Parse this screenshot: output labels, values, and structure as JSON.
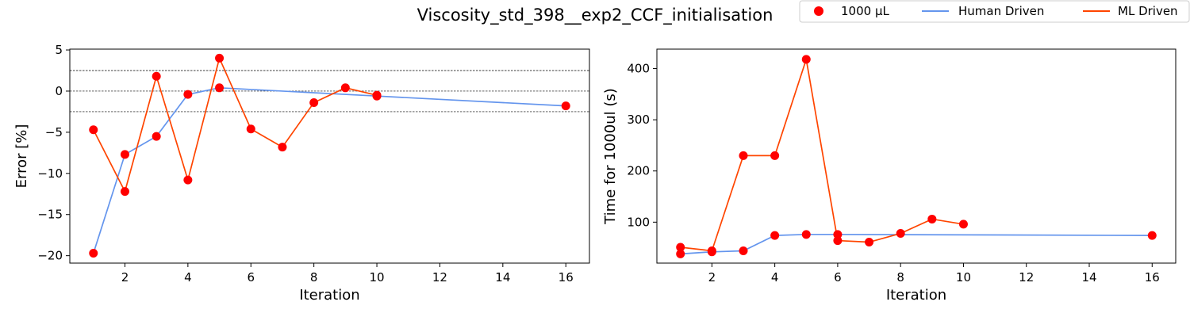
{
  "figure": {
    "title": "Viscosity_std_398__exp2_CCF_initialisation"
  },
  "legend": {
    "position": "top-right",
    "entries": [
      {
        "label": "1000 µL",
        "kind": "marker",
        "color": "#ff0000"
      },
      {
        "label": "Human Driven",
        "kind": "line",
        "color": "#6495ed"
      },
      {
        "label": "ML Driven",
        "kind": "line",
        "color": "#ff4500"
      }
    ]
  },
  "chart_data": [
    {
      "type": "line",
      "xlabel": "Iteration",
      "ylabel": "Error [%]",
      "xlim": [
        0.25,
        16.75
      ],
      "ylim": [
        -20.9,
        5.1
      ],
      "xticks": [
        2,
        4,
        6,
        8,
        10,
        12,
        14,
        16
      ],
      "yticks": [
        -20,
        -15,
        -10,
        -5,
        0,
        5
      ],
      "reference_lines": [
        2.5,
        0,
        -2.5
      ],
      "grid": false,
      "series": [
        {
          "name": "Human Driven",
          "color": "#6495ed",
          "x": [
            1,
            2,
            3,
            4,
            5,
            10,
            16
          ],
          "y": [
            -19.7,
            -7.7,
            -5.5,
            -0.4,
            0.4,
            -0.6,
            -1.8
          ]
        },
        {
          "name": "ML Driven",
          "color": "#ff4500",
          "x": [
            1,
            2,
            3,
            4,
            5,
            6,
            7,
            8,
            9,
            10
          ],
          "y": [
            -4.7,
            -12.2,
            1.8,
            -10.8,
            4.0,
            -4.6,
            -6.8,
            -1.4,
            0.4,
            -0.5
          ]
        }
      ],
      "markers": {
        "name": "1000 µL",
        "color": "#ff0000",
        "points": [
          [
            1,
            -19.7
          ],
          [
            2,
            -7.7
          ],
          [
            3,
            -5.5
          ],
          [
            4,
            -0.4
          ],
          [
            5,
            0.4
          ],
          [
            10,
            -0.6
          ],
          [
            16,
            -1.8
          ],
          [
            1,
            -4.7
          ],
          [
            2,
            -12.2
          ],
          [
            3,
            1.8
          ],
          [
            4,
            -10.8
          ],
          [
            5,
            4.0
          ],
          [
            6,
            -4.6
          ],
          [
            7,
            -6.8
          ],
          [
            8,
            -1.4
          ],
          [
            9,
            0.4
          ],
          [
            10,
            -0.5
          ]
        ]
      }
    },
    {
      "type": "line",
      "xlabel": "Iteration",
      "ylabel": "Time for 1000ul (s)",
      "xlim": [
        0.25,
        16.75
      ],
      "ylim": [
        20,
        438
      ],
      "xticks": [
        2,
        4,
        6,
        8,
        10,
        12,
        14,
        16
      ],
      "yticks": [
        100,
        200,
        300,
        400
      ],
      "reference_lines": [],
      "grid": false,
      "series": [
        {
          "name": "Human Driven",
          "color": "#6495ed",
          "x": [
            1,
            2,
            3,
            4,
            5,
            6,
            16
          ],
          "y": [
            38,
            42,
            44,
            74,
            76,
            76,
            74
          ]
        },
        {
          "name": "ML Driven",
          "color": "#ff4500",
          "x": [
            1,
            2,
            3,
            4,
            5,
            6,
            7,
            8,
            9,
            10
          ],
          "y": [
            51,
            44,
            230,
            230,
            418,
            64,
            61,
            78,
            106,
            96
          ]
        }
      ],
      "markers": {
        "name": "1000 µL",
        "color": "#ff0000",
        "points": [
          [
            1,
            38
          ],
          [
            2,
            42
          ],
          [
            3,
            44
          ],
          [
            4,
            74
          ],
          [
            5,
            76
          ],
          [
            6,
            76
          ],
          [
            16,
            74
          ],
          [
            1,
            51
          ],
          [
            2,
            44
          ],
          [
            3,
            230
          ],
          [
            4,
            230
          ],
          [
            5,
            418
          ],
          [
            6,
            64
          ],
          [
            7,
            61
          ],
          [
            8,
            78
          ],
          [
            9,
            106
          ],
          [
            10,
            96
          ]
        ]
      }
    }
  ]
}
